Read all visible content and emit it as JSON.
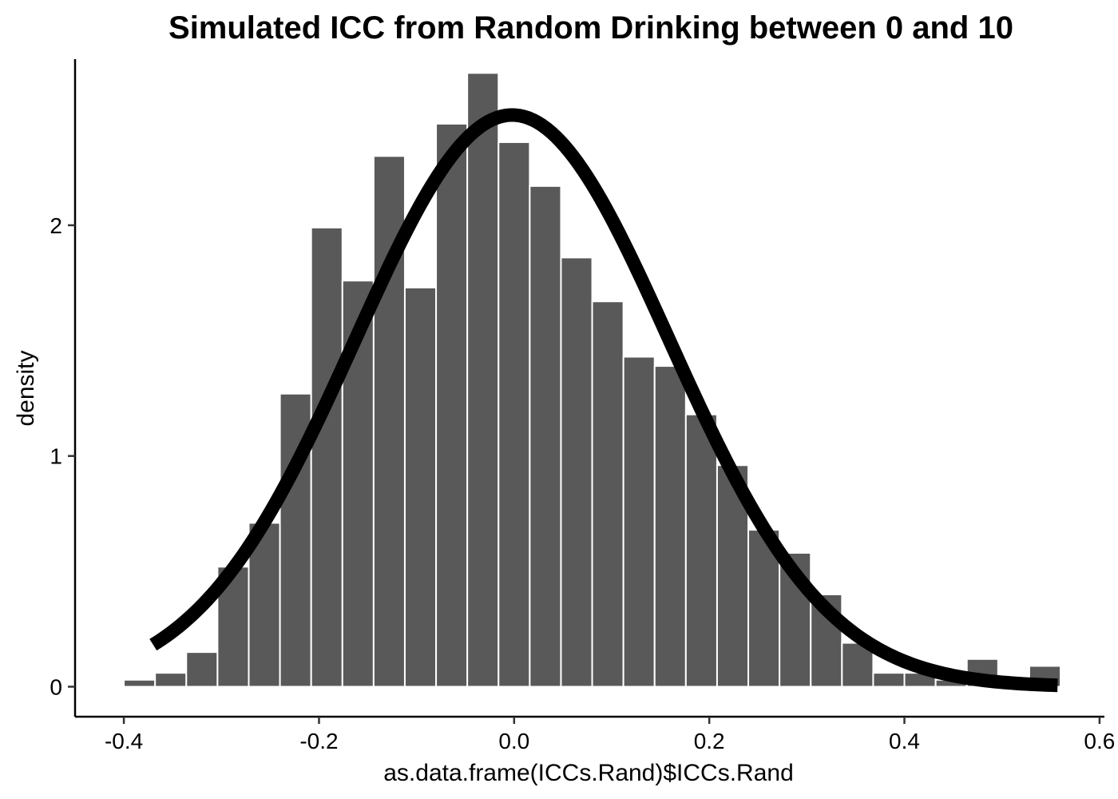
{
  "chart_data": {
    "type": "bar",
    "title": "Simulated ICC from Random Drinking between 0 and 10",
    "xlabel": "as.data.frame(ICCs.Rand)$ICCs.Rand",
    "ylabel": "density",
    "xlim": [
      -0.45,
      0.605
    ],
    "ylim": [
      -0.13,
      2.72
    ],
    "x_ticks": [
      -0.4,
      -0.2,
      0.0,
      0.2,
      0.4,
      0.6
    ],
    "x_tick_labels": [
      "-0.4",
      "-0.2",
      "0.0",
      "0.2",
      "0.4",
      "0.6"
    ],
    "y_ticks": [
      0,
      1,
      2
    ],
    "y_tick_labels": [
      "0",
      "1",
      "2"
    ],
    "grid": false,
    "bin_width": 0.032,
    "bins": [
      {
        "x": -0.384,
        "density": 0.03
      },
      {
        "x": -0.352,
        "density": 0.06
      },
      {
        "x": -0.32,
        "density": 0.15
      },
      {
        "x": -0.288,
        "density": 0.52
      },
      {
        "x": -0.256,
        "density": 0.71
      },
      {
        "x": -0.224,
        "density": 1.27
      },
      {
        "x": -0.192,
        "density": 1.99
      },
      {
        "x": -0.16,
        "density": 1.76
      },
      {
        "x": -0.128,
        "density": 2.3
      },
      {
        "x": -0.096,
        "density": 1.73
      },
      {
        "x": -0.064,
        "density": 2.44
      },
      {
        "x": -0.032,
        "density": 2.66
      },
      {
        "x": 0.0,
        "density": 2.36
      },
      {
        "x": 0.032,
        "density": 2.17
      },
      {
        "x": 0.064,
        "density": 1.86
      },
      {
        "x": 0.096,
        "density": 1.67
      },
      {
        "x": 0.128,
        "density": 1.43
      },
      {
        "x": 0.16,
        "density": 1.39
      },
      {
        "x": 0.192,
        "density": 1.18
      },
      {
        "x": 0.224,
        "density": 0.96
      },
      {
        "x": 0.256,
        "density": 0.68
      },
      {
        "x": 0.288,
        "density": 0.58
      },
      {
        "x": 0.32,
        "density": 0.4
      },
      {
        "x": 0.352,
        "density": 0.19
      },
      {
        "x": 0.384,
        "density": 0.06
      },
      {
        "x": 0.416,
        "density": 0.06
      },
      {
        "x": 0.448,
        "density": 0.03
      },
      {
        "x": 0.48,
        "density": 0.12
      },
      {
        "x": 0.512,
        "density": 0.03
      },
      {
        "x": 0.544,
        "density": 0.09
      }
    ],
    "density_curve": {
      "type": "normal",
      "mean": -0.002,
      "sd": 0.161,
      "x_range": [
        -0.37,
        0.557
      ]
    },
    "colors": {
      "bar_fill": "#595959",
      "bar_outline": "#ffffff",
      "curve": "#000000",
      "background": "#ffffff",
      "axis": "#000000"
    }
  }
}
